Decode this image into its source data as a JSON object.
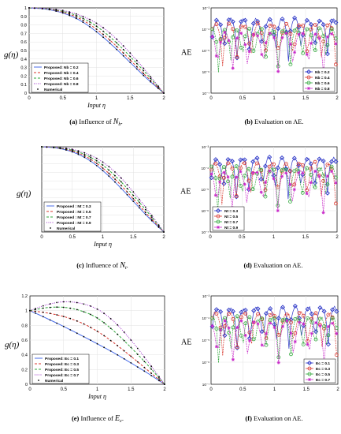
{
  "panels": [
    {
      "id": "a",
      "caption_prefix": "(a)",
      "caption_text": "Influence of",
      "caption_sym": "N",
      "caption_sub": "b",
      "caption_suffix": ".",
      "chart_data": {
        "type": "line",
        "ylabel": "g(η)",
        "xlabel": "Input η",
        "xlim": [
          0,
          2
        ],
        "ylim": [
          0,
          1
        ],
        "xticks": [
          "0",
          "0.5",
          "1",
          "1.5",
          "2"
        ],
        "yticks": [
          "0",
          "0.1",
          "0.2",
          "0.3",
          "0.4",
          "0.5",
          "0.6",
          "0.7",
          "0.8",
          "0.9",
          "1"
        ],
        "grid": true,
        "legend_position": "bottom-left",
        "series": [
          {
            "name": "Proposed: Nb = 0.2",
            "color": "#4a6ee8",
            "style": "solid",
            "x": [
              0,
              0.25,
              0.5,
              0.75,
              1.0,
              1.25,
              1.5,
              1.75,
              2.0
            ],
            "y": [
              1.0,
              0.985,
              0.94,
              0.855,
              0.72,
              0.55,
              0.36,
              0.17,
              0.0
            ]
          },
          {
            "name": "Proposed: Nb = 0.4",
            "color": "#d9372e",
            "style": "dashed",
            "x": [
              0,
              0.25,
              0.5,
              0.75,
              1.0,
              1.25,
              1.5,
              1.75,
              2.0
            ],
            "y": [
              1.0,
              0.988,
              0.95,
              0.875,
              0.75,
              0.585,
              0.39,
              0.19,
              0.0
            ]
          },
          {
            "name": "Proposed: Nb = 0.6",
            "color": "#2fa73a",
            "style": "dashed",
            "x": [
              0,
              0.25,
              0.5,
              0.75,
              1.0,
              1.25,
              1.5,
              1.75,
              2.0
            ],
            "y": [
              1.0,
              0.99,
              0.96,
              0.895,
              0.785,
              0.625,
              0.43,
              0.22,
              0.0
            ]
          },
          {
            "name": "Proposed: Nb = 0.8",
            "color": "#9a2bc8",
            "style": "dotted",
            "x": [
              0,
              0.25,
              0.5,
              0.75,
              1.0,
              1.25,
              1.5,
              1.75,
              2.0
            ],
            "y": [
              1.0,
              0.993,
              0.97,
              0.915,
              0.82,
              0.67,
              0.47,
              0.245,
              0.0
            ]
          },
          {
            "name": "Numerical",
            "color": "#000000",
            "style": "markers",
            "x": [],
            "y": []
          }
        ]
      }
    },
    {
      "id": "b",
      "caption_prefix": "(b)",
      "caption_text": "Evaluation on AE.",
      "chart_data": {
        "type": "line",
        "ylabel": "AE",
        "xlabel": "",
        "xlim": [
          0,
          2
        ],
        "yscale": "log",
        "xticks": [
          "0",
          "0.5",
          "1",
          "1.5",
          "2"
        ],
        "yticks": [
          "10⁻⁷",
          "10⁻⁶",
          "10⁻⁵",
          "10⁻⁴",
          "10⁻³"
        ],
        "grid": true,
        "legend_position": "bottom-right",
        "series": [
          {
            "name": "Nb = 0.2",
            "color": "#2b35c7",
            "marker": "diamond"
          },
          {
            "name": "Nb = 0.4",
            "color": "#d9372e",
            "marker": "circle"
          },
          {
            "name": "Nb = 0.6",
            "color": "#2fa73a",
            "marker": "circle"
          },
          {
            "name": "Nb = 0.8",
            "color": "#c828c8",
            "marker": "star"
          }
        ]
      }
    },
    {
      "id": "c",
      "caption_prefix": "(c)",
      "caption_text": "Influence of",
      "caption_sym": "N",
      "caption_sub": "t",
      "caption_suffix": ".",
      "chart_data": {
        "type": "line",
        "ylabel": "g(η)",
        "xlabel": "Input η",
        "xlim": [
          0,
          2
        ],
        "ylim": [
          0,
          1
        ],
        "xticks": [
          "0",
          "0.5",
          "1",
          "1.5",
          "2"
        ],
        "yticks": [],
        "grid": true,
        "legend_position": "bottom-left",
        "series": [
          {
            "name": "Proposed : Nt = 0.3",
            "color": "#4a6ee8",
            "style": "solid",
            "x": [
              0,
              0.25,
              0.5,
              0.75,
              1.0,
              1.25,
              1.5,
              1.75,
              2.0
            ],
            "y": [
              1.0,
              0.985,
              0.94,
              0.855,
              0.72,
              0.55,
              0.36,
              0.17,
              0.0
            ]
          },
          {
            "name": "Proposed : Nt = 0.5",
            "color": "#d9372e",
            "style": "dashed",
            "x": [
              0,
              0.25,
              0.5,
              0.75,
              1.0,
              1.25,
              1.5,
              1.75,
              2.0
            ],
            "y": [
              1.0,
              0.988,
              0.95,
              0.875,
              0.75,
              0.585,
              0.39,
              0.19,
              0.0
            ]
          },
          {
            "name": "Proposed : Nt = 0.7",
            "color": "#2fa73a",
            "style": "dashed",
            "x": [
              0,
              0.25,
              0.5,
              0.75,
              1.0,
              1.25,
              1.5,
              1.75,
              2.0
            ],
            "y": [
              1.0,
              0.99,
              0.96,
              0.895,
              0.785,
              0.625,
              0.43,
              0.22,
              0.0
            ]
          },
          {
            "name": "Proposed : Nt = 0.9",
            "color": "#9a2bc8",
            "style": "dotted",
            "x": [
              0,
              0.25,
              0.5,
              0.75,
              1.0,
              1.25,
              1.5,
              1.75,
              2.0
            ],
            "y": [
              1.0,
              0.993,
              0.97,
              0.915,
              0.82,
              0.67,
              0.47,
              0.245,
              0.0
            ]
          },
          {
            "name": "Numerical",
            "color": "#000000",
            "style": "markers",
            "x": [],
            "y": []
          }
        ]
      }
    },
    {
      "id": "d",
      "caption_prefix": "(d)",
      "caption_text": "Evaluation on AE.",
      "chart_data": {
        "type": "line",
        "ylabel": "AE",
        "xlabel": "",
        "xlim": [
          0,
          2
        ],
        "yscale": "log",
        "xticks": [
          "0",
          "0.5",
          "1",
          "1.5",
          "2"
        ],
        "yticks": [
          "10⁻⁷",
          "10⁻⁶",
          "10⁻⁵",
          "10⁻⁴",
          "10⁻³"
        ],
        "grid": true,
        "legend_position": "bottom-left",
        "series": [
          {
            "name": "Nt = 0.3",
            "color": "#2b35c7",
            "marker": "diamond"
          },
          {
            "name": "Nt = 0.5",
            "color": "#d9372e",
            "marker": "circle"
          },
          {
            "name": "Nt = 0.7",
            "color": "#2fa73a",
            "marker": "circle"
          },
          {
            "name": "Nt = 0.9",
            "color": "#c828c8",
            "marker": "star"
          }
        ]
      }
    },
    {
      "id": "e",
      "caption_prefix": "(e)",
      "caption_text": "Influence of",
      "caption_sym": "E",
      "caption_sub": "c",
      "caption_suffix": ".",
      "chart_data": {
        "type": "line",
        "ylabel": "g(η)",
        "xlabel": "Input η",
        "xlim": [
          0,
          2
        ],
        "ylim": [
          0,
          1.2
        ],
        "xticks": [
          "0",
          "0.5",
          "1",
          "1.5",
          "2"
        ],
        "yticks": [
          "0",
          "0.2",
          "0.4",
          "0.6",
          "0.8",
          "1",
          "1.2"
        ],
        "grid": true,
        "legend_position": "bottom-left",
        "series": [
          {
            "name": "Proposed: Ec = 0.1",
            "color": "#4a6ee8",
            "style": "solid",
            "x": [
              0,
              0.25,
              0.5,
              0.75,
              1.0,
              1.25,
              1.5,
              1.75,
              2.0
            ],
            "y": [
              1.0,
              0.895,
              0.785,
              0.67,
              0.55,
              0.425,
              0.29,
              0.15,
              0.0
            ]
          },
          {
            "name": "Proposed: Ec = 0.3",
            "color": "#d9372e",
            "style": "dashed",
            "x": [
              0,
              0.25,
              0.5,
              0.75,
              1.0,
              1.25,
              1.5,
              1.75,
              2.0
            ],
            "y": [
              1.0,
              0.97,
              0.92,
              0.84,
              0.72,
              0.56,
              0.38,
              0.19,
              0.0
            ]
          },
          {
            "name": "Proposed: Ec = 0.5",
            "color": "#2fa73a",
            "style": "dashed",
            "x": [
              0,
              0.25,
              0.5,
              0.75,
              1.0,
              1.25,
              1.5,
              1.75,
              2.0
            ],
            "y": [
              1.0,
              1.04,
              1.045,
              1.0,
              0.9,
              0.72,
              0.5,
              0.26,
              0.0
            ]
          },
          {
            "name": "Proposed: Ec = 0.7",
            "color": "#9a2bc8",
            "style": "dotted",
            "x": [
              0,
              0.25,
              0.5,
              0.75,
              1.0,
              1.25,
              1.5,
              1.75,
              2.0
            ],
            "y": [
              1.0,
              1.08,
              1.12,
              1.1,
              1.02,
              0.85,
              0.6,
              0.31,
              0.0
            ]
          },
          {
            "name": "Numerical",
            "color": "#000000",
            "style": "markers",
            "x": [],
            "y": []
          }
        ]
      }
    },
    {
      "id": "f",
      "caption_prefix": "(f)",
      "caption_text": "Evaluation on AE.",
      "chart_data": {
        "type": "line",
        "ylabel": "AE",
        "xlabel": "",
        "xlim": [
          0,
          2
        ],
        "yscale": "log",
        "xticks": [
          "0",
          "0.5",
          "1",
          "1.5",
          "2"
        ],
        "yticks": [
          "10⁻⁷",
          "10⁻⁶",
          "10⁻⁵",
          "10⁻⁴",
          "10⁻³"
        ],
        "grid": true,
        "legend_position": "bottom-right",
        "series": [
          {
            "name": "Ec = 0.1",
            "color": "#2b35c7",
            "marker": "diamond"
          },
          {
            "name": "Ec = 0.3",
            "color": "#d9372e",
            "marker": "circle"
          },
          {
            "name": "Ec = 0.5",
            "color": "#2fa73a",
            "marker": "circle"
          },
          {
            "name": "Ec = 0.7",
            "color": "#c828c8",
            "marker": "star"
          }
        ]
      }
    }
  ]
}
